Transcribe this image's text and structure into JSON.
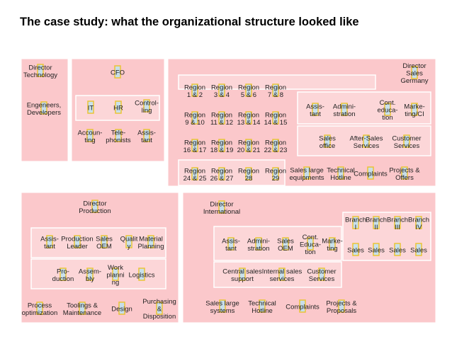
{
  "title": "The case study: what the organizational structure looked like",
  "units": [
    {
      "title": "Director\nTechnology",
      "nodes": [
        {
          "label": "Engeneers,\nDevelopers"
        }
      ]
    },
    {
      "title": "CFO",
      "nodes": [
        {
          "label": "IT"
        },
        {
          "label": "HR"
        },
        {
          "label": "Control-\nling"
        },
        {
          "label": "Accoun-\nting"
        },
        {
          "label": "Tele-\nphonists"
        },
        {
          "label": "Assis-\ntant"
        }
      ]
    },
    {
      "title": "Director\nSales\nGermany",
      "nodes": [
        {
          "label": "Region\n1 & 2"
        },
        {
          "label": "Region\n3 & 4"
        },
        {
          "label": "Region\n5 & 6"
        },
        {
          "label": "Region\n7 & 8"
        },
        {
          "label": "Region\n9 & 10"
        },
        {
          "label": "Region\n11 & 12"
        },
        {
          "label": "Region\n13 & 14"
        },
        {
          "label": "Region\n14 & 15"
        },
        {
          "label": "Region\n16 & 17"
        },
        {
          "label": "Region\n18 & 19"
        },
        {
          "label": "Region\n20 & 21"
        },
        {
          "label": "Region\n22 & 23"
        },
        {
          "label": "Region\n24 & 25"
        },
        {
          "label": "Region\n26 & 27"
        },
        {
          "label": "Region\n28"
        },
        {
          "label": "Region\n29"
        },
        {
          "label": "Assis-\ntant"
        },
        {
          "label": "Admini-\nstration"
        },
        {
          "label": "Cont.\neduca-\ntion"
        },
        {
          "label": "Marke-\nting/CI"
        },
        {
          "label": "Sales\noffice"
        },
        {
          "label": "After-Sales\nServices"
        },
        {
          "label": "Customer\nServices"
        },
        {
          "label": "Sales large\nequipments"
        },
        {
          "label": "Technical\nHotline"
        },
        {
          "label": "Complaints"
        },
        {
          "label": "Projects &\nOffers"
        }
      ]
    },
    {
      "title": "Director\nProduction",
      "nodes": [
        {
          "label": "Assis-\ntant"
        },
        {
          "label": "Production\nLeader"
        },
        {
          "label": "Sales\nOEM"
        },
        {
          "label": "Qualit\ny"
        },
        {
          "label": "Material\nPlanning"
        },
        {
          "label": "Pro-\nduction"
        },
        {
          "label": "Assem-\nbly"
        },
        {
          "label": "Work\nplanni\nng"
        },
        {
          "label": "Logistics"
        },
        {
          "label": "Process\noptimization"
        },
        {
          "label": "Toolings &\nMaintenance"
        },
        {
          "label": "Design"
        },
        {
          "label": "Purchasing\n&\nDisposition"
        }
      ]
    },
    {
      "title": "Director\nInternational",
      "nodes": [
        {
          "label": "Branch\nI"
        },
        {
          "label": "Branch\nII"
        },
        {
          "label": "Branch\nIII"
        },
        {
          "label": "Branch\nIV"
        },
        {
          "label": "Sales"
        },
        {
          "label": "Sales"
        },
        {
          "label": "Sales"
        },
        {
          "label": "Sales"
        },
        {
          "label": "Assis-\ntant"
        },
        {
          "label": "Admini-\nstration"
        },
        {
          "label": "Sales\nOEM"
        },
        {
          "label": "Cont.\nEduca-\ntion"
        },
        {
          "label": "Marke-\nting"
        },
        {
          "label": "Central sales\nsupport"
        },
        {
          "label": "Internal sales\nservices"
        },
        {
          "label": "Customer\nServices"
        },
        {
          "label": "Sales large\nsystems"
        },
        {
          "label": "Technical\nHotline"
        },
        {
          "label": "Complaints"
        },
        {
          "label": "Projects &\nProposals"
        }
      ]
    }
  ]
}
